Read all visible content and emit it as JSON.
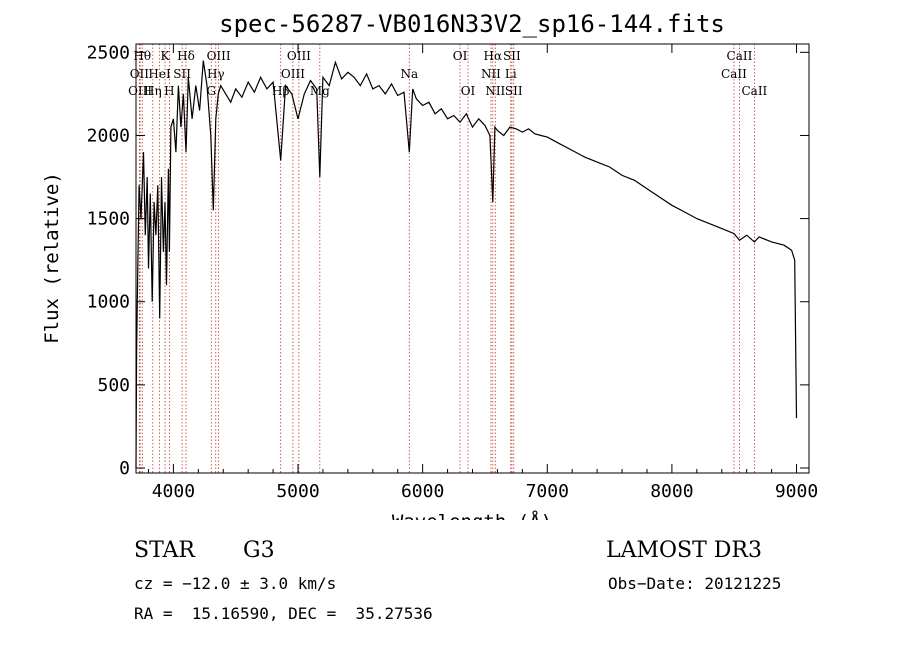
{
  "chart_data": {
    "type": "line",
    "title": "spec-56287-VB016N33V2_sp16-144.fits",
    "xlabel": "Wavelength (Å)",
    "ylabel": "Flux (relative)",
    "xlim": [
      3700,
      9100
    ],
    "ylim": [
      -30,
      2550
    ],
    "x_ticks": [
      4000,
      5000,
      6000,
      7000,
      8000,
      9000
    ],
    "y_ticks": [
      0,
      500,
      1000,
      1500,
      2000,
      2500
    ],
    "x_tick_labels": [
      "4000",
      "5000",
      "6000",
      "7000",
      "8000",
      "9000"
    ],
    "y_tick_labels": [
      "0",
      "500",
      "1000",
      "1500",
      "2000",
      "2500"
    ],
    "grid": false,
    "series": [
      {
        "name": "spectrum",
        "x": [
          3700,
          3705,
          3715,
          3725,
          3740,
          3760,
          3775,
          3790,
          3800,
          3815,
          3830,
          3845,
          3860,
          3875,
          3890,
          3905,
          3920,
          3933,
          3945,
          3960,
          3968,
          3980,
          4000,
          4020,
          4040,
          4060,
          4080,
          4101,
          4120,
          4150,
          4180,
          4210,
          4240,
          4270,
          4300,
          4320,
          4340,
          4360,
          4380,
          4420,
          4460,
          4500,
          4550,
          4600,
          4650,
          4700,
          4750,
          4800,
          4861,
          4900,
          4950,
          5000,
          5050,
          5100,
          5150,
          5175,
          5200,
          5250,
          5300,
          5350,
          5400,
          5450,
          5500,
          5550,
          5600,
          5650,
          5700,
          5750,
          5800,
          5850,
          5893,
          5920,
          5950,
          6000,
          6050,
          6100,
          6150,
          6200,
          6250,
          6300,
          6350,
          6400,
          6450,
          6500,
          6540,
          6563,
          6580,
          6600,
          6650,
          6700,
          6750,
          6800,
          6850,
          6900,
          6950,
          7000,
          7100,
          7200,
          7300,
          7400,
          7500,
          7600,
          7700,
          7800,
          7900,
          8000,
          8100,
          8200,
          8300,
          8400,
          8498,
          8542,
          8600,
          8662,
          8700,
          8800,
          8900,
          8960,
          8985,
          9000
        ],
        "values": [
          0,
          700,
          1250,
          1700,
          1500,
          1900,
          1400,
          1750,
          1200,
          1650,
          1000,
          1600,
          1400,
          1700,
          900,
          1750,
          1300,
          1600,
          1100,
          1800,
          1300,
          2050,
          2100,
          1900,
          2300,
          2050,
          2250,
          1900,
          2350,
          2100,
          2300,
          2150,
          2450,
          2300,
          2000,
          1550,
          2100,
          2250,
          2300,
          2250,
          2200,
          2280,
          2230,
          2320,
          2260,
          2350,
          2280,
          2320,
          1850,
          2300,
          2250,
          2100,
          2250,
          2330,
          2280,
          1750,
          2350,
          2300,
          2440,
          2340,
          2380,
          2350,
          2300,
          2370,
          2280,
          2300,
          2250,
          2310,
          2240,
          2260,
          1900,
          2280,
          2220,
          2180,
          2200,
          2130,
          2160,
          2100,
          2120,
          2080,
          2130,
          2050,
          2100,
          2060,
          2000,
          1600,
          2050,
          2030,
          2000,
          2050,
          2040,
          2020,
          2040,
          2010,
          2000,
          1990,
          1950,
          1910,
          1870,
          1840,
          1810,
          1760,
          1730,
          1680,
          1630,
          1580,
          1540,
          1500,
          1470,
          1440,
          1410,
          1370,
          1400,
          1360,
          1390,
          1360,
          1340,
          1310,
          1250,
          300
        ]
      }
    ],
    "line_markers": [
      {
        "wave": 3750,
        "label": "Hθ",
        "row": 0
      },
      {
        "wave": 3727,
        "label": "OII",
        "row": 1
      },
      {
        "wave": 3733,
        "label": "OIII",
        "row": 2
      },
      {
        "wave": 3835,
        "label": "Hη",
        "row": 2
      },
      {
        "wave": 3889,
        "label": "HeI",
        "row": 1
      },
      {
        "wave": 3933,
        "label": "K",
        "row": 0
      },
      {
        "wave": 3968,
        "label": "H",
        "row": 2
      },
      {
        "wave": 4070,
        "label": "SII",
        "row": 1
      },
      {
        "wave": 4101,
        "label": "Hδ",
        "row": 0
      },
      {
        "wave": 4304,
        "label": "G",
        "row": 2
      },
      {
        "wave": 4340,
        "label": "Hγ",
        "row": 1
      },
      {
        "wave": 4363,
        "label": "OIII",
        "row": 0
      },
      {
        "wave": 4861,
        "label": "Hβ",
        "row": 2
      },
      {
        "wave": 4959,
        "label": "OIII",
        "row": 1
      },
      {
        "wave": 5007,
        "label": "OIII",
        "row": 0
      },
      {
        "wave": 5175,
        "label": "Mg",
        "row": 2
      },
      {
        "wave": 5893,
        "label": "Na",
        "row": 1
      },
      {
        "wave": 6300,
        "label": "OI",
        "row": 0
      },
      {
        "wave": 6364,
        "label": "OI",
        "row": 2
      },
      {
        "wave": 6548,
        "label": "NII",
        "row": 1
      },
      {
        "wave": 6563,
        "label": "Hα",
        "row": 0
      },
      {
        "wave": 6583,
        "label": "NII",
        "row": 2
      },
      {
        "wave": 6707,
        "label": "Li",
        "row": 1
      },
      {
        "wave": 6716,
        "label": "SII",
        "row": 0
      },
      {
        "wave": 6731,
        "label": "SII",
        "row": 2
      },
      {
        "wave": 8498,
        "label": "CaII",
        "row": 1
      },
      {
        "wave": 8542,
        "label": "CaII",
        "row": 0
      },
      {
        "wave": 8662,
        "label": "CaII",
        "row": 2
      }
    ]
  },
  "info": {
    "object_class": "STAR",
    "subclass": "G3",
    "survey": "LAMOST DR3",
    "cz": "cz = −12.0 ± 3.0 km/s",
    "obs_date": "Obs−Date: 20121225",
    "coords": "RA =  15.16590, DEC =  35.27536"
  },
  "colors": {
    "spectrum": "#000000",
    "marker": "#c0392b",
    "axis": "#000000"
  }
}
